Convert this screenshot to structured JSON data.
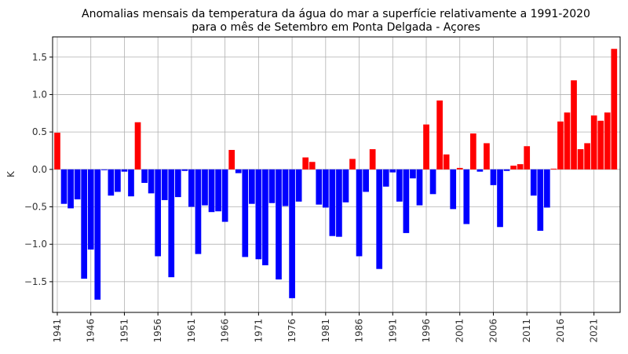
{
  "chart_data": {
    "type": "bar",
    "title": [
      "Anomalias mensais da temperatura da água do mar a superfície relativamente a 1991-2020",
      "para o mês de Setembro em Ponta Delgada - Açores"
    ],
    "ylabel": "K",
    "x": [
      1941,
      1942,
      1943,
      1944,
      1945,
      1946,
      1947,
      1948,
      1949,
      1950,
      1951,
      1952,
      1953,
      1954,
      1955,
      1956,
      1957,
      1958,
      1959,
      1960,
      1961,
      1962,
      1963,
      1964,
      1965,
      1966,
      1967,
      1968,
      1969,
      1970,
      1971,
      1972,
      1973,
      1974,
      1975,
      1976,
      1977,
      1978,
      1979,
      1980,
      1981,
      1982,
      1983,
      1984,
      1985,
      1986,
      1987,
      1988,
      1989,
      1990,
      1991,
      1992,
      1993,
      1994,
      1995,
      1996,
      1997,
      1998,
      1999,
      2000,
      2001,
      2002,
      2003,
      2004,
      2005,
      2006,
      2007,
      2008,
      2009,
      2010,
      2011,
      2012,
      2013,
      2014,
      2015,
      2016,
      2017,
      2018,
      2019,
      2020,
      2021,
      2022,
      2023,
      2024
    ],
    "values": [
      0.49,
      -0.46,
      -0.52,
      -0.4,
      -1.46,
      -1.07,
      -1.74,
      -0.01,
      -0.35,
      -0.3,
      -0.03,
      -0.36,
      0.63,
      -0.18,
      -0.32,
      -1.16,
      -0.41,
      -1.44,
      -0.37,
      -0.02,
      -0.5,
      -1.13,
      -0.48,
      -0.57,
      -0.56,
      -0.7,
      0.26,
      -0.05,
      -1.17,
      -0.46,
      -1.2,
      -1.28,
      -0.45,
      -1.47,
      -0.49,
      -1.72,
      -0.43,
      0.16,
      0.1,
      -0.47,
      -0.51,
      -0.89,
      -0.9,
      -0.44,
      0.14,
      -1.16,
      -0.3,
      0.27,
      -1.33,
      -0.23,
      -0.04,
      -0.43,
      -0.85,
      -0.12,
      -0.48,
      0.6,
      -0.33,
      0.92,
      0.2,
      -0.53,
      0.02,
      -0.73,
      0.48,
      -0.03,
      0.35,
      -0.21,
      -0.77,
      -0.02,
      0.05,
      0.07,
      0.31,
      -0.35,
      -0.82,
      -0.51,
      0.01,
      0.64,
      0.76,
      1.19,
      0.27,
      0.35,
      0.72,
      0.65,
      0.76,
      1.61
    ],
    "colors": {
      "positive": "#ff0000",
      "negative": "#0000ff"
    },
    "xlim": [
      1940.3,
      2024.9
    ],
    "xticks": [
      1941,
      1946,
      1951,
      1956,
      1961,
      1966,
      1971,
      1976,
      1981,
      1986,
      1991,
      1996,
      2001,
      2006,
      2011,
      2016,
      2021
    ],
    "ylim": [
      -1.91,
      1.77
    ],
    "yticks": [
      {
        "value": -1.5,
        "label": "−1.5"
      },
      {
        "value": -1.0,
        "label": "−1.0"
      },
      {
        "value": -0.5,
        "label": "−0.5"
      },
      {
        "value": 0,
        "label": "0.0"
      },
      {
        "value": 0.5,
        "label": "0.5"
      },
      {
        "value": 1.0,
        "label": "1.0"
      },
      {
        "value": 1.5,
        "label": "1.5"
      }
    ],
    "grid": true
  }
}
